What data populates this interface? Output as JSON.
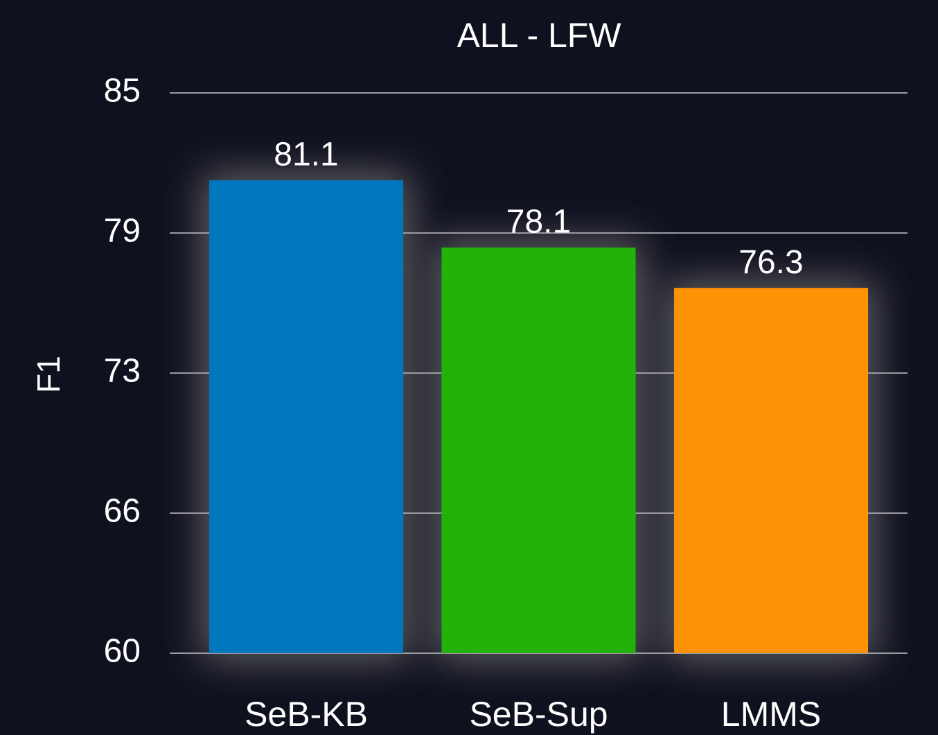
{
  "chart_data": {
    "type": "bar",
    "title": "ALL - LFW",
    "y_label": "F1",
    "categories": [
      "SeB-KB",
      "SeB-Sup",
      "LMMS"
    ],
    "values": [
      81.1,
      78.1,
      76.3
    ],
    "colors": [
      "#0077be",
      "#22b20a",
      "#ff9308"
    ],
    "ylim": [
      60,
      85
    ],
    "yticks": [
      60,
      {
        "value": 66.25,
        "label": "66"
      },
      {
        "value": 72.5,
        "label": "73"
      },
      {
        "value": 78.75,
        "label": "79"
      },
      85
    ],
    "grid": true
  }
}
